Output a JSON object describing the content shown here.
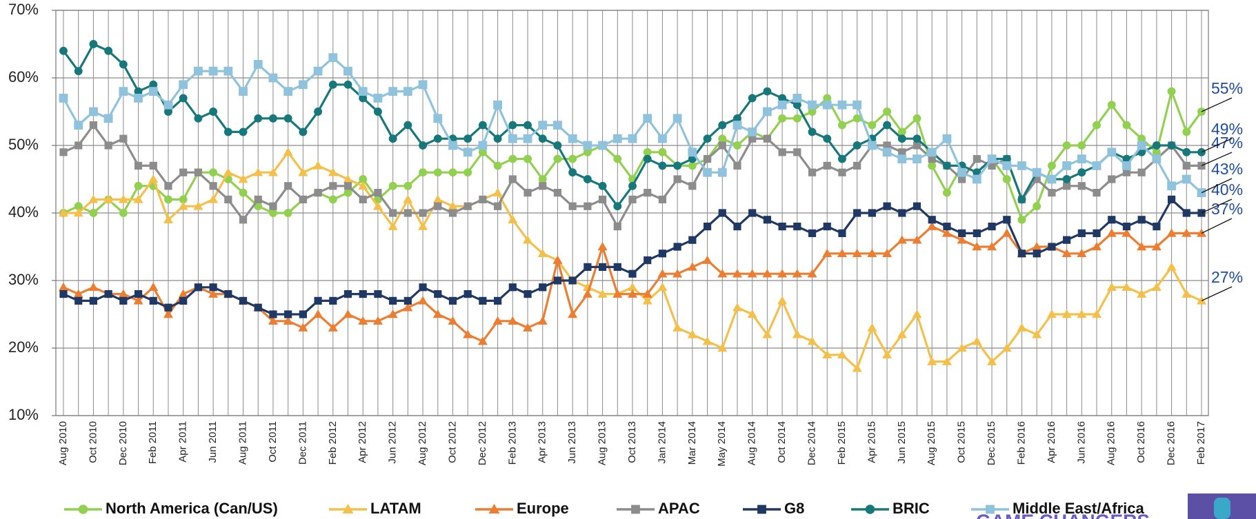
{
  "chart_data": {
    "type": "line",
    "categories": [
      "Aug 2010",
      null,
      "Oct 2010",
      null,
      "Dec 2010",
      null,
      "Feb 2011",
      null,
      "Apr 2011",
      null,
      "Jun 2011",
      null,
      "Aug 2011",
      null,
      "Oct 2011",
      null,
      "Dec 2011",
      null,
      "Feb 2012",
      null,
      "Apr 2012",
      null,
      "Jun 2012",
      null,
      "Aug 2012",
      null,
      "Oct 2012",
      null,
      "Dec 2012",
      null,
      "Feb 2013",
      null,
      "Apr 2013",
      null,
      "Jun 2013",
      null,
      "Aug 2013",
      null,
      "Oct 2013",
      null,
      "Jan 2014",
      null,
      "Mar 2014",
      null,
      "May 2014",
      null,
      "Aug 2014",
      null,
      "Oct 2014",
      null,
      "Dec 2014",
      null,
      "Feb 2015",
      null,
      "Apr 2015",
      null,
      "Jun 2015",
      null,
      "Aug 2015",
      null,
      "Oct 2015",
      null,
      "Dec 2015",
      null,
      "Feb 2016",
      null,
      "Apr 2016",
      null,
      "Jun 2016",
      null,
      "Aug 2016",
      null,
      "Oct 2016",
      null,
      "Dec 2016",
      null,
      "Feb 2017"
    ],
    "ylim": [
      10,
      70
    ],
    "yticks": [
      {
        "value": 10,
        "label": "10%"
      },
      {
        "value": 20,
        "label": "20%"
      },
      {
        "value": 30,
        "label": "30%"
      },
      {
        "value": 40,
        "label": "40%"
      },
      {
        "value": 50,
        "label": "50%"
      },
      {
        "value": 60,
        "label": "60%"
      },
      {
        "value": 70,
        "label": "70%"
      }
    ],
    "grid": true,
    "series": [
      {
        "name": "North America (Can/US)",
        "color": "#92d050",
        "marker": "circle",
        "end_label": "55%",
        "values": [
          40,
          41,
          40,
          42,
          40,
          44,
          44,
          42,
          42,
          46,
          46,
          45,
          43,
          41,
          40,
          40,
          42,
          43,
          42,
          43,
          45,
          42,
          44,
          44,
          46,
          46,
          46,
          46,
          49,
          47,
          48,
          48,
          45,
          48,
          48,
          49,
          50,
          48,
          45,
          49,
          49,
          47,
          47,
          48,
          51,
          50,
          52,
          51,
          54,
          54,
          55,
          57,
          53,
          54,
          53,
          55,
          52,
          54,
          47,
          43,
          47,
          46,
          48,
          45,
          39,
          41,
          47,
          50,
          50,
          53,
          56,
          53,
          51,
          49,
          58,
          52,
          55
        ]
      },
      {
        "name": "LATAM",
        "color": "#f5c04a",
        "marker": "triangle",
        "end_label": "27%",
        "values": [
          40,
          40,
          42,
          42,
          42,
          42,
          45,
          39,
          41,
          41,
          42,
          46,
          45,
          46,
          46,
          49,
          46,
          47,
          46,
          45,
          44,
          41,
          38,
          42,
          38,
          42,
          41,
          41,
          42,
          43,
          39,
          36,
          34,
          33,
          30,
          29,
          28,
          28,
          29,
          27,
          29,
          23,
          22,
          21,
          20,
          26,
          25,
          22,
          27,
          22,
          21,
          19,
          19,
          17,
          23,
          19,
          22,
          25,
          18,
          18,
          20,
          21,
          18,
          20,
          23,
          22,
          25,
          25,
          25,
          25,
          29,
          29,
          28,
          29,
          32,
          28,
          27
        ]
      },
      {
        "name": "Europe",
        "color": "#ed7d31",
        "marker": "triangle",
        "end_label": "37%",
        "values": [
          29,
          28,
          29,
          28,
          28,
          27,
          29,
          25,
          28,
          29,
          28,
          28,
          27,
          26,
          24,
          24,
          23,
          25,
          23,
          25,
          24,
          24,
          25,
          26,
          27,
          25,
          24,
          22,
          21,
          24,
          24,
          23,
          24,
          33,
          25,
          28,
          35,
          28,
          28,
          28,
          31,
          31,
          32,
          33,
          31,
          31,
          31,
          31,
          31,
          31,
          31,
          34,
          34,
          34,
          34,
          34,
          36,
          36,
          38,
          37,
          36,
          35,
          35,
          37,
          34,
          35,
          35,
          34,
          34,
          35,
          37,
          37,
          35,
          35,
          37,
          37,
          37
        ]
      },
      {
        "name": "APAC",
        "color": "#8c8c8c",
        "marker": "square",
        "end_label": "47%",
        "values": [
          49,
          50,
          53,
          50,
          51,
          47,
          47,
          44,
          46,
          46,
          44,
          42,
          39,
          42,
          41,
          44,
          42,
          43,
          44,
          44,
          42,
          43,
          40,
          40,
          40,
          41,
          40,
          41,
          42,
          41,
          45,
          43,
          44,
          43,
          41,
          41,
          42,
          38,
          42,
          43,
          42,
          45,
          44,
          48,
          50,
          47,
          51,
          51,
          49,
          49,
          46,
          47,
          46,
          47,
          50,
          50,
          49,
          50,
          48,
          47,
          45,
          48,
          47,
          48,
          42,
          45,
          43,
          44,
          44,
          43,
          45,
          46,
          46,
          48,
          50,
          47,
          47
        ]
      },
      {
        "name": "G8",
        "color": "#1f3864",
        "marker": "square",
        "end_label": "40%",
        "values": [
          28,
          27,
          27,
          28,
          27,
          28,
          27,
          26,
          27,
          29,
          29,
          28,
          27,
          26,
          25,
          25,
          25,
          27,
          27,
          28,
          28,
          28,
          27,
          27,
          29,
          28,
          27,
          28,
          27,
          27,
          29,
          28,
          29,
          30,
          30,
          32,
          32,
          32,
          31,
          33,
          34,
          35,
          36,
          38,
          40,
          38,
          40,
          39,
          38,
          38,
          37,
          38,
          37,
          40,
          40,
          41,
          40,
          41,
          39,
          38,
          37,
          37,
          38,
          39,
          34,
          34,
          35,
          36,
          37,
          37,
          39,
          38,
          39,
          38,
          42,
          40,
          40
        ]
      },
      {
        "name": "BRIC",
        "color": "#17787b",
        "marker": "circle",
        "end_label": "49%",
        "values": [
          64,
          61,
          65,
          64,
          62,
          58,
          59,
          55,
          57,
          54,
          55,
          52,
          52,
          54,
          54,
          54,
          52,
          55,
          59,
          59,
          57,
          55,
          51,
          53,
          50,
          51,
          51,
          51,
          53,
          51,
          53,
          53,
          51,
          50,
          46,
          45,
          44,
          41,
          44,
          48,
          47,
          47,
          48,
          51,
          53,
          54,
          57,
          58,
          57,
          56,
          52,
          51,
          48,
          50,
          51,
          53,
          51,
          51,
          49,
          47,
          47,
          46,
          48,
          48,
          42,
          46,
          45,
          45,
          46,
          47,
          49,
          48,
          49,
          50,
          50,
          49,
          49
        ]
      },
      {
        "name": "Middle East/Africa",
        "color": "#8fc3dd",
        "marker": "square",
        "end_label": "43%",
        "values": [
          57,
          53,
          55,
          54,
          58,
          57,
          58,
          56,
          59,
          61,
          61,
          61,
          58,
          62,
          60,
          58,
          59,
          61,
          63,
          61,
          58,
          57,
          58,
          58,
          59,
          54,
          50,
          49,
          50,
          56,
          51,
          51,
          53,
          53,
          51,
          50,
          50,
          51,
          51,
          54,
          51,
          54,
          49,
          46,
          46,
          53,
          52,
          55,
          56,
          57,
          56,
          56,
          56,
          56,
          50,
          49,
          48,
          48,
          49,
          51,
          46,
          45,
          48,
          47,
          47,
          46,
          45,
          47,
          48,
          47,
          49,
          47,
          50,
          48,
          44,
          45,
          43
        ]
      }
    ]
  },
  "logo_text": "GAME CHANGERS"
}
